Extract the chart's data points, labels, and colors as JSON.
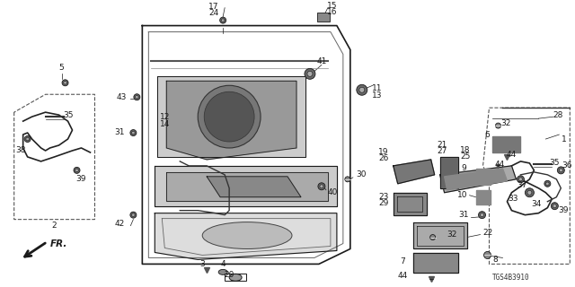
{
  "bg_color": "#ffffff",
  "line_color": "#1a1a1a",
  "gray_color": "#555555",
  "diagram_code": "TGS4B3910",
  "figsize": [
    6.4,
    3.2
  ],
  "dpi": 100
}
